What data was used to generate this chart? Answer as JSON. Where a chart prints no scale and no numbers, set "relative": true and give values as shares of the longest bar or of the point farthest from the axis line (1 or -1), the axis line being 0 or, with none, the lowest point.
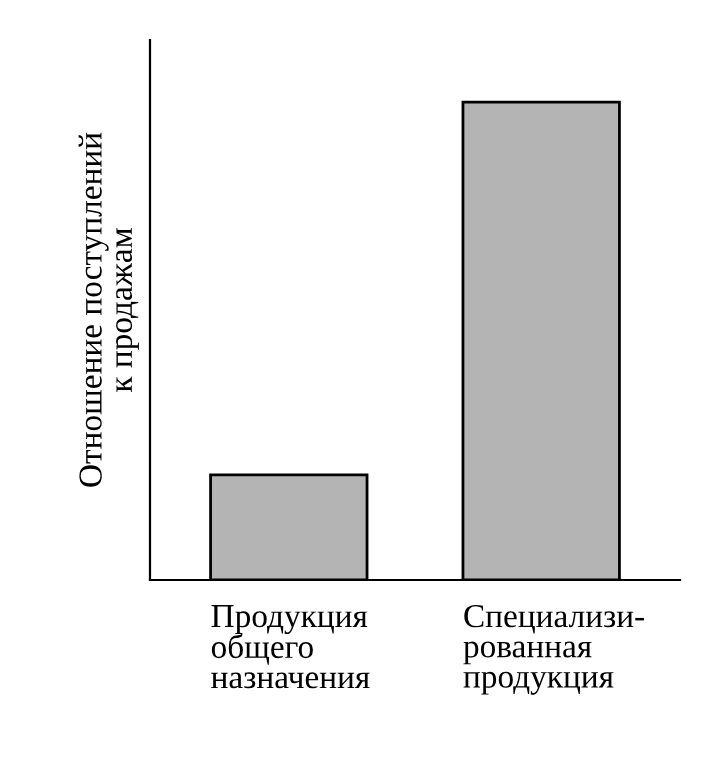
{
  "chart_data": {
    "type": "bar",
    "relative": true,
    "ylabel": "Отношение поступлений\nк продажам",
    "categories": [
      "Продукция\nобщего\nназначения",
      "Специализи-\nрованная\nпродукция"
    ],
    "values": [
      0.22,
      1
    ],
    "color": "#b4b4b4"
  }
}
